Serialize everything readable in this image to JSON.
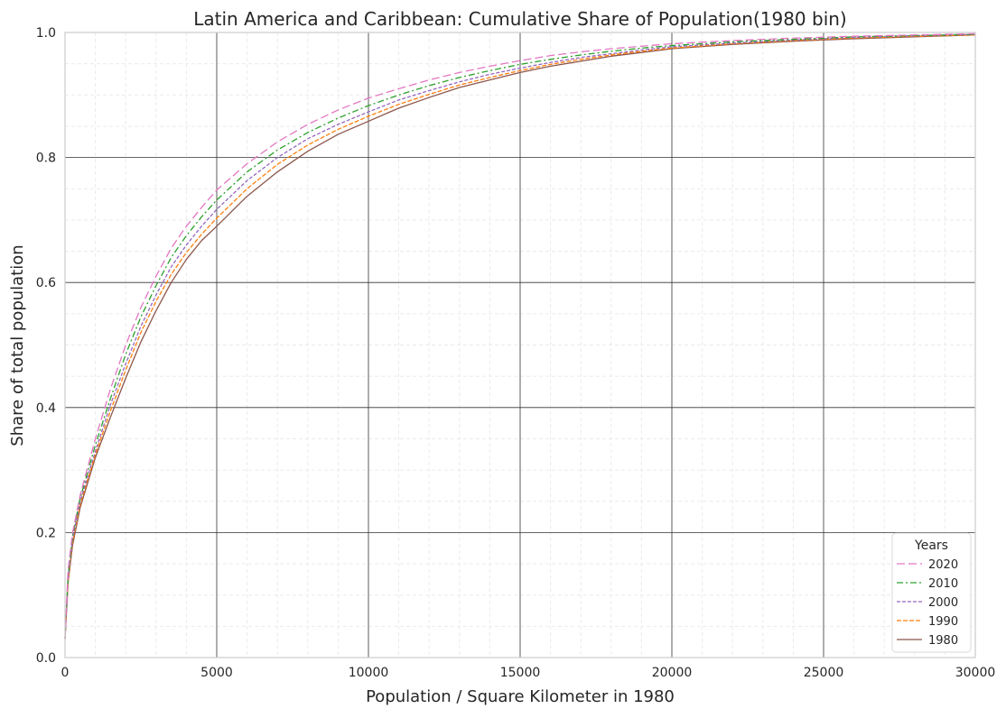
{
  "chart_data": {
    "type": "line",
    "title": "Latin America and Caribbean: Cumulative Share of Population(1980 bin)",
    "xlabel": "Population / Square Kilometer in 1980",
    "ylabel": "Share of total population",
    "xlim": [
      0,
      30000
    ],
    "ylim": [
      0,
      1.0
    ],
    "x_ticks": [
      0,
      5000,
      10000,
      15000,
      20000,
      25000,
      30000
    ],
    "y_ticks": [
      0.0,
      0.2,
      0.4,
      0.6,
      0.8,
      1.0
    ],
    "x_tick_labels": [
      "0",
      "5000",
      "10000",
      "15000",
      "20000",
      "25000",
      "30000"
    ],
    "y_tick_labels": [
      "0.0",
      "0.2",
      "0.4",
      "0.6",
      "0.8",
      "1.0"
    ],
    "grid": true,
    "legend": {
      "title": "Years",
      "placement": "lower-right"
    },
    "x": [
      0,
      100,
      250,
      500,
      1000,
      1500,
      2000,
      2500,
      3000,
      3500,
      4000,
      4500,
      5000,
      6000,
      7000,
      8000,
      9000,
      10000,
      11000,
      12000,
      13000,
      14000,
      15000,
      16000,
      17000,
      18000,
      19000,
      20000,
      22000,
      24000,
      26000,
      28000,
      30000
    ],
    "series": [
      {
        "name": "2020",
        "color": "#e377c2",
        "dash": "9,4",
        "values": [
          0.03,
          0.14,
          0.2,
          0.26,
          0.35,
          0.43,
          0.5,
          0.56,
          0.61,
          0.655,
          0.69,
          0.72,
          0.748,
          0.79,
          0.825,
          0.853,
          0.876,
          0.895,
          0.91,
          0.924,
          0.936,
          0.946,
          0.955,
          0.963,
          0.969,
          0.974,
          0.978,
          0.982,
          0.987,
          0.991,
          0.994,
          0.996,
          0.998
        ]
      },
      {
        "name": "2010",
        "color": "#2ca02c",
        "dash": "7,3,2,3",
        "values": [
          0.03,
          0.13,
          0.195,
          0.255,
          0.34,
          0.415,
          0.485,
          0.545,
          0.595,
          0.64,
          0.675,
          0.705,
          0.732,
          0.777,
          0.812,
          0.84,
          0.863,
          0.883,
          0.9,
          0.915,
          0.928,
          0.939,
          0.949,
          0.957,
          0.964,
          0.97,
          0.975,
          0.979,
          0.985,
          0.989,
          0.993,
          0.995,
          0.997
        ]
      },
      {
        "name": "2000",
        "color": "#9467bd",
        "dash": "4,2",
        "values": [
          0.03,
          0.125,
          0.19,
          0.25,
          0.33,
          0.405,
          0.47,
          0.53,
          0.58,
          0.625,
          0.66,
          0.69,
          0.717,
          0.763,
          0.8,
          0.83,
          0.853,
          0.873,
          0.892,
          0.907,
          0.921,
          0.933,
          0.943,
          0.952,
          0.96,
          0.966,
          0.972,
          0.977,
          0.983,
          0.988,
          0.992,
          0.995,
          0.997
        ]
      },
      {
        "name": "1990",
        "color": "#ff7f0e",
        "dash": "5,2",
        "values": [
          0.03,
          0.12,
          0.185,
          0.245,
          0.325,
          0.395,
          0.46,
          0.52,
          0.57,
          0.613,
          0.648,
          0.677,
          0.703,
          0.75,
          0.789,
          0.82,
          0.845,
          0.866,
          0.885,
          0.901,
          0.916,
          0.928,
          0.939,
          0.949,
          0.957,
          0.964,
          0.97,
          0.975,
          0.982,
          0.987,
          0.991,
          0.994,
          0.996
        ]
      },
      {
        "name": "1980",
        "color": "#8c564b",
        "dash": "",
        "values": [
          0.03,
          0.12,
          0.18,
          0.24,
          0.32,
          0.385,
          0.447,
          0.505,
          0.555,
          0.6,
          0.637,
          0.667,
          0.69,
          0.738,
          0.777,
          0.81,
          0.837,
          0.858,
          0.879,
          0.896,
          0.912,
          0.924,
          0.936,
          0.946,
          0.954,
          0.962,
          0.968,
          0.974,
          0.981,
          0.986,
          0.99,
          0.993,
          0.996
        ]
      }
    ]
  }
}
